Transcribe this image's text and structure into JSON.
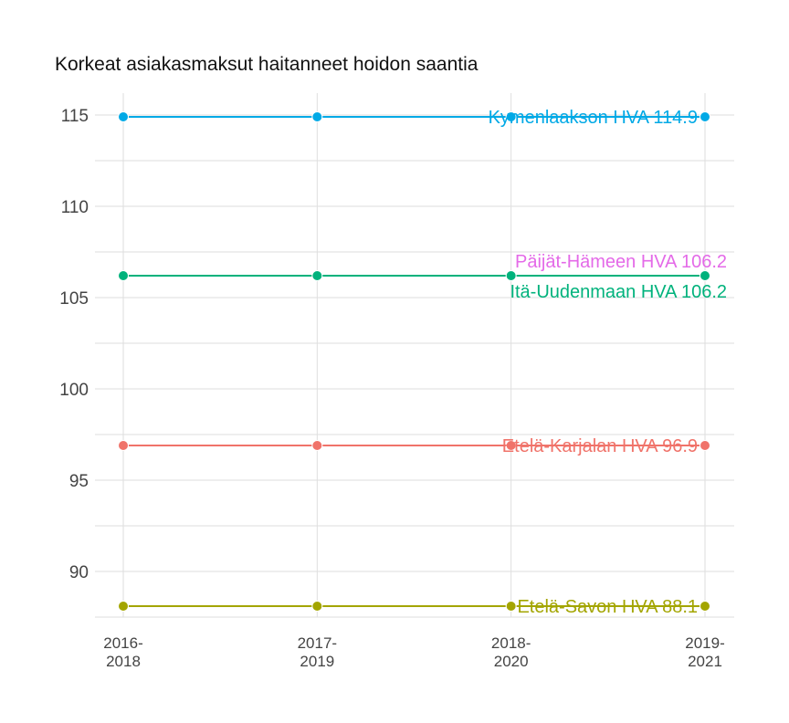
{
  "chart_data": {
    "type": "line",
    "title": "Korkeat asiakasmaksut haitanneet hoidon saantia",
    "xlabel": "",
    "ylabel": "",
    "categories": [
      [
        "2016-",
        "2018"
      ],
      [
        "2017-",
        "2019"
      ],
      [
        "2018-",
        "2020"
      ],
      [
        "2019-",
        "2021"
      ]
    ],
    "ylim": [
      87.5,
      116.2
    ],
    "yticks": [
      90,
      95,
      100,
      105,
      110,
      115
    ],
    "grid": true,
    "legend": "none",
    "series": [
      {
        "label": "Kymenlaakson HVA 114.9",
        "values": [
          114.9,
          114.9,
          114.9,
          114.9
        ],
        "color": "#00a9e6"
      },
      {
        "label": "Päijät-Hämeen HVA 106.2",
        "values": [
          106.2,
          106.2,
          106.2,
          106.2
        ],
        "color": "#e46ae8"
      },
      {
        "label": "Itä-Uudenmaan HVA 106.2",
        "values": [
          106.2,
          106.2,
          106.2,
          106.2
        ],
        "color": "#00b27c"
      },
      {
        "label": "Etelä-Karjalan HVA 96.9",
        "values": [
          96.9,
          96.9,
          96.9,
          96.9
        ],
        "color": "#f0736a"
      },
      {
        "label": "Etelä-Savon HVA 88.1",
        "values": [
          88.1,
          88.1,
          88.1,
          88.1
        ],
        "color": "#a3a500"
      }
    ]
  }
}
